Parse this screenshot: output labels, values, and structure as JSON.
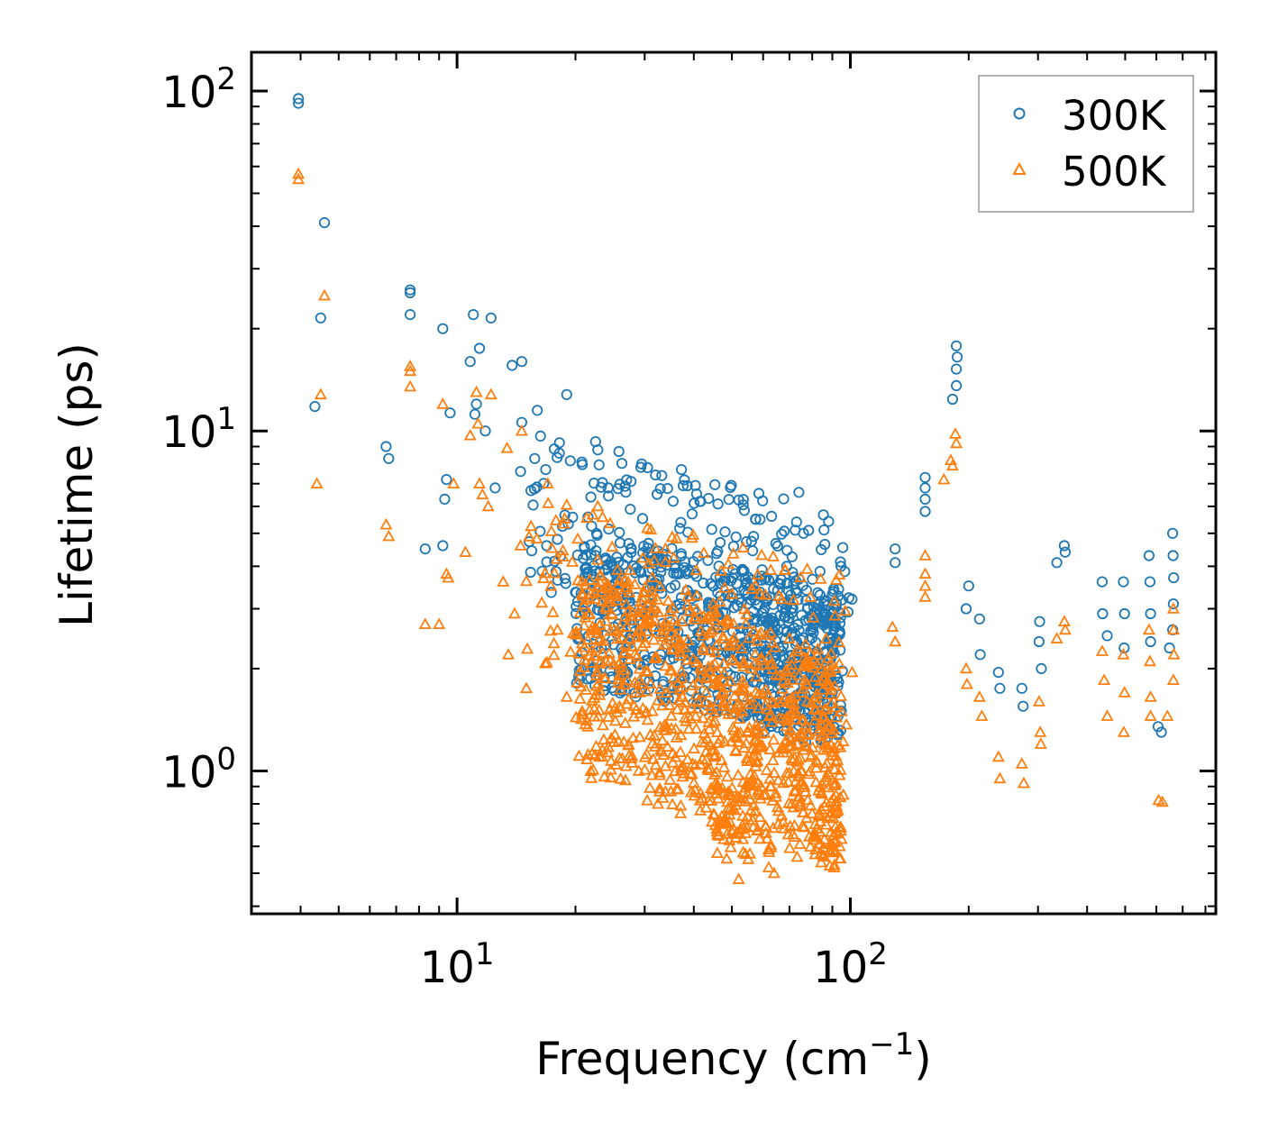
{
  "chart_data": {
    "type": "scatter",
    "xscale": "log",
    "yscale": "log",
    "xlabel": "Frequency (cm",
    "xlabel_superscript": "−1",
    "xlabel_suffix": ")",
    "ylabel": "Lifetime (ps)",
    "xlim": [
      3.0,
      850.0
    ],
    "ylim": [
      0.38,
      130.0
    ],
    "x_ticks": [
      {
        "value": 10,
        "base": "10",
        "exp": "1"
      },
      {
        "value": 100,
        "base": "10",
        "exp": "2"
      }
    ],
    "y_ticks": [
      {
        "value": 1,
        "base": "10",
        "exp": "0"
      },
      {
        "value": 10,
        "base": "10",
        "exp": "1"
      },
      {
        "value": 100,
        "base": "10",
        "exp": "2"
      }
    ],
    "legend": {
      "position": "top-right",
      "entries": [
        "300K",
        "500K"
      ]
    },
    "colors": {
      "300K": "#1f77b4",
      "500K": "#ff7f0e"
    },
    "series": [
      {
        "name": "300K",
        "marker": "circle",
        "points": [
          [
            3.95,
            95
          ],
          [
            3.95,
            92
          ],
          [
            4.5,
            21.5
          ],
          [
            4.6,
            41
          ],
          [
            4.35,
            11.8
          ],
          [
            6.6,
            9.0
          ],
          [
            6.7,
            8.3
          ],
          [
            7.6,
            26
          ],
          [
            7.6,
            25.5
          ],
          [
            7.6,
            22
          ],
          [
            8.3,
            4.5
          ],
          [
            9.2,
            20
          ],
          [
            9.2,
            4.6
          ],
          [
            9.3,
            6.3
          ],
          [
            9.4,
            7.2
          ],
          [
            9.6,
            11.3
          ],
          [
            10.8,
            16
          ],
          [
            11.0,
            22
          ],
          [
            11.1,
            11.2
          ],
          [
            11.2,
            12
          ],
          [
            11.4,
            17.5
          ],
          [
            11.8,
            10
          ],
          [
            12.2,
            21.5
          ],
          [
            12.5,
            6.8
          ],
          [
            13.8,
            15.6
          ],
          [
            14.6,
            16
          ],
          [
            14.6,
            10.6
          ],
          [
            14.5,
            7.6
          ],
          [
            16.0,
            11.5
          ],
          [
            16.8,
            7.7
          ],
          [
            18.2,
            8.6
          ],
          [
            19.0,
            12.8
          ],
          [
            18.0,
            4.8
          ],
          [
            22.5,
            9.3
          ],
          [
            22.8,
            8.8
          ],
          [
            25.8,
            8.7
          ],
          [
            30.5,
            7.8
          ],
          [
            37.2,
            7.7
          ],
          [
            38.5,
            6.9
          ],
          [
            39.6,
            5.7
          ],
          [
            74,
            6.6
          ],
          [
            73,
            5.4
          ],
          [
            76,
            5.0
          ],
          [
            80,
            2.6
          ],
          [
            90,
            1.7
          ],
          [
            93,
            1.45
          ],
          [
            101,
            3.2
          ],
          [
            130,
            4.5
          ],
          [
            130,
            4.1
          ],
          [
            155,
            7.3
          ],
          [
            155,
            6.8
          ],
          [
            155,
            6.3
          ],
          [
            155,
            5.8
          ],
          [
            182,
            12.4
          ],
          [
            186,
            17.8
          ],
          [
            187,
            16.5
          ],
          [
            186,
            15.2
          ],
          [
            186,
            13.6
          ],
          [
            200,
            3.5
          ],
          [
            197,
            3.0
          ],
          [
            213,
            2.8
          ],
          [
            214,
            2.2
          ],
          [
            238,
            1.95
          ],
          [
            240,
            1.75
          ],
          [
            273,
            1.75
          ],
          [
            275,
            1.55
          ],
          [
            303,
            2.75
          ],
          [
            302,
            2.4
          ],
          [
            306,
            2.0
          ],
          [
            335,
            4.1
          ],
          [
            350,
            4.6
          ],
          [
            352,
            4.4
          ],
          [
            437,
            3.6
          ],
          [
            438,
            2.9
          ],
          [
            450,
            2.5
          ],
          [
            495,
            3.6
          ],
          [
            498,
            2.9
          ],
          [
            497,
            2.3
          ],
          [
            575,
            4.3
          ],
          [
            578,
            3.6
          ],
          [
            580,
            2.9
          ],
          [
            580,
            2.4
          ],
          [
            606,
            1.35
          ],
          [
            618,
            1.3
          ],
          [
            660,
            5.0
          ],
          [
            662,
            4.3
          ],
          [
            664,
            3.7
          ],
          [
            663,
            3.1
          ],
          [
            660,
            2.6
          ],
          [
            648,
            2.3
          ]
        ],
        "clusters": [
          {
            "x_range": [
              15,
              100
            ],
            "y_range": [
              2.5,
              7.5
            ],
            "count": 220,
            "y_slope": -0.25
          },
          {
            "x_range": [
              20,
              95
            ],
            "y_range": [
              1.5,
              4.2
            ],
            "count": 650,
            "y_slope": -0.15
          },
          {
            "x_range": [
              60,
              95
            ],
            "y_range": [
              1.2,
              3.2
            ],
            "count": 160,
            "y_slope": 0
          }
        ]
      },
      {
        "name": "500K",
        "marker": "triangle",
        "points": [
          [
            3.95,
            57
          ],
          [
            3.95,
            55
          ],
          [
            4.6,
            25
          ],
          [
            4.5,
            12.8
          ],
          [
            4.4,
            7.0
          ],
          [
            6.6,
            5.3
          ],
          [
            6.7,
            4.9
          ],
          [
            7.6,
            15.5
          ],
          [
            7.6,
            15
          ],
          [
            7.6,
            13.5
          ],
          [
            8.3,
            2.7
          ],
          [
            9.0,
            2.7
          ],
          [
            9.2,
            12
          ],
          [
            9.4,
            3.8
          ],
          [
            9.5,
            3.7
          ],
          [
            9.8,
            7.0
          ],
          [
            10.5,
            4.4
          ],
          [
            10.8,
            9.7
          ],
          [
            11.2,
            13
          ],
          [
            11.3,
            10.5
          ],
          [
            11.4,
            7.0
          ],
          [
            11.6,
            6.5
          ],
          [
            12.0,
            6.0
          ],
          [
            12.2,
            12.8
          ],
          [
            13.1,
            3.6
          ],
          [
            13.4,
            8.9
          ],
          [
            13.5,
            2.2
          ],
          [
            14.0,
            2.9
          ],
          [
            14.6,
            10
          ],
          [
            14.5,
            4.6
          ],
          [
            15.0,
            1.75
          ],
          [
            17.0,
            7.0
          ],
          [
            18.0,
            2.6
          ],
          [
            19.0,
            1.65
          ],
          [
            21.5,
            1.35
          ],
          [
            22.8,
            6.0
          ],
          [
            35,
            0.87
          ],
          [
            37,
            0.75
          ],
          [
            43,
            0.78
          ],
          [
            52,
            0.48
          ],
          [
            55,
            0.55
          ],
          [
            62,
            0.52
          ],
          [
            64,
            0.5
          ],
          [
            94,
            0.6
          ],
          [
            96,
            0.85
          ],
          [
            101,
            1.95
          ],
          [
            128,
            2.65
          ],
          [
            130,
            2.4
          ],
          [
            155,
            4.3
          ],
          [
            155,
            3.8
          ],
          [
            155,
            3.5
          ],
          [
            155,
            3.25
          ],
          [
            173,
            7.2
          ],
          [
            180,
            8.2
          ],
          [
            185,
            9.8
          ],
          [
            186,
            9.2
          ],
          [
            182,
            7.9
          ],
          [
            197,
            2.0
          ],
          [
            198,
            1.8
          ],
          [
            213,
            1.65
          ],
          [
            216,
            1.45
          ],
          [
            238,
            1.1
          ],
          [
            240,
            0.95
          ],
          [
            273,
            1.05
          ],
          [
            276,
            0.92
          ],
          [
            302,
            1.6
          ],
          [
            304,
            1.3
          ],
          [
            305,
            1.2
          ],
          [
            335,
            2.45
          ],
          [
            350,
            2.75
          ],
          [
            352,
            2.6
          ],
          [
            437,
            2.25
          ],
          [
            442,
            1.85
          ],
          [
            450,
            1.45
          ],
          [
            495,
            2.2
          ],
          [
            498,
            1.7
          ],
          [
            496,
            1.3
          ],
          [
            575,
            2.6
          ],
          [
            578,
            2.1
          ],
          [
            580,
            1.65
          ],
          [
            580,
            1.45
          ],
          [
            608,
            0.82
          ],
          [
            622,
            0.81
          ],
          [
            663,
            3.0
          ],
          [
            664,
            2.6
          ],
          [
            665,
            2.2
          ],
          [
            663,
            1.85
          ],
          [
            640,
            1.45
          ]
        ],
        "clusters": [
          {
            "x_range": [
              15,
              100
            ],
            "y_range": [
              1.6,
              5.0
            ],
            "count": 160,
            "y_slope": -0.25
          },
          {
            "x_range": [
              20,
              95
            ],
            "y_range": [
              0.7,
              3.0
            ],
            "count": 750,
            "y_slope": -0.28
          },
          {
            "x_range": [
              45,
              95
            ],
            "y_range": [
              0.55,
              1.6
            ],
            "count": 180,
            "y_slope": 0
          }
        ]
      }
    ]
  }
}
